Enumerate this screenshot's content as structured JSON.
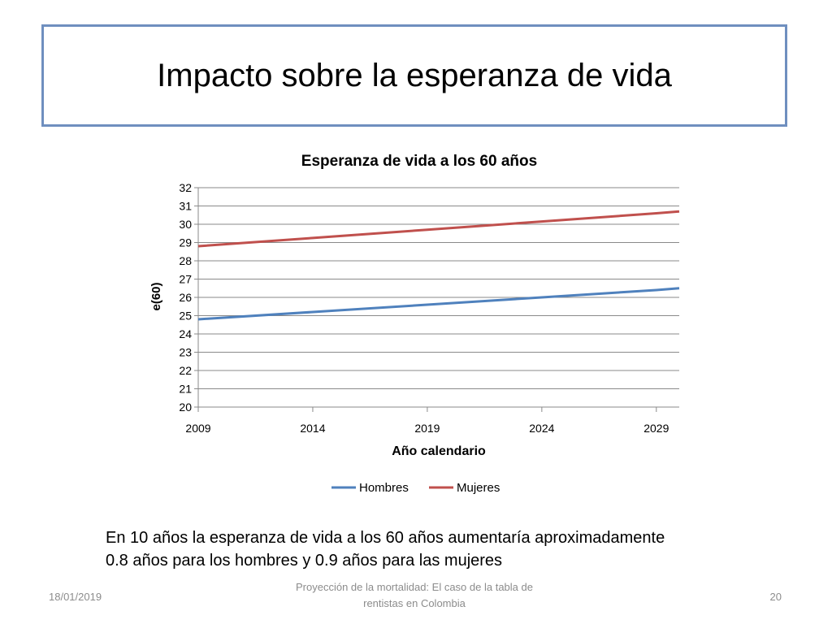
{
  "slide": {
    "title": "Impacto sobre la esperanza de vida",
    "body_text": "En 10 años la esperanza de vida a los 60 años aumentaría aproximadamente 0.8 años para los hombres y 0.9 años para las mujeres"
  },
  "footer": {
    "date": "18/01/2019",
    "center": "Proyección de la mortalidad: El caso de la tabla de rentistas en Colombia",
    "page": "20"
  },
  "chart_data": {
    "type": "line",
    "title": "Esperanza de vida a los 60 años",
    "xlabel": "Año calendario",
    "ylabel": "e(60)",
    "xlim": [
      2009,
      2030
    ],
    "ylim": [
      20,
      32
    ],
    "xticks": [
      2009,
      2014,
      2019,
      2024,
      2029
    ],
    "yticks": [
      20,
      21,
      22,
      23,
      24,
      25,
      26,
      27,
      28,
      29,
      30,
      31,
      32
    ],
    "grid": true,
    "legend_position": "bottom",
    "series": [
      {
        "name": "Hombres",
        "color": "#4f81bd",
        "x": [
          2009,
          2014,
          2019,
          2024,
          2029,
          2030
        ],
        "values": [
          24.8,
          25.2,
          25.6,
          26.0,
          26.4,
          26.5
        ]
      },
      {
        "name": "Mujeres",
        "color": "#c0504d",
        "x": [
          2009,
          2014,
          2019,
          2024,
          2029,
          2030
        ],
        "values": [
          28.8,
          29.25,
          29.7,
          30.15,
          30.6,
          30.7
        ]
      }
    ]
  }
}
